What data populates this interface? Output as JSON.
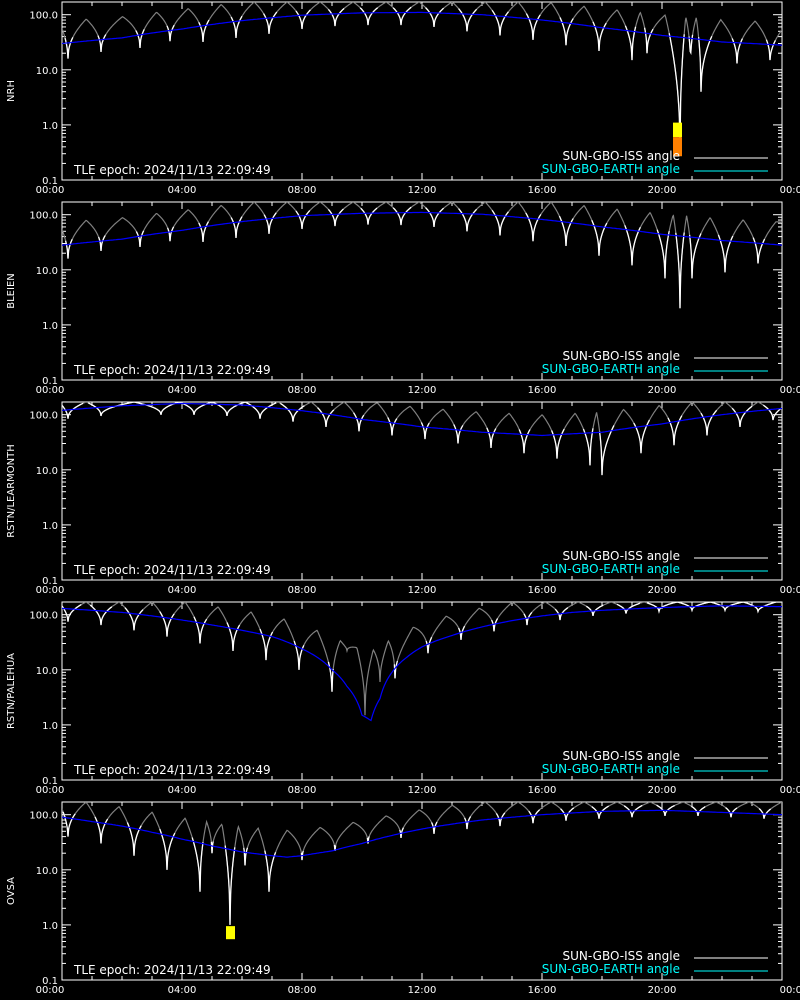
{
  "legend": {
    "iss_label": "SUN-GBO-ISS angle",
    "earth_label": "SUN-GBO-EARTH angle"
  },
  "tle_text": "TLE epoch: 2024/11/13 22:09:49",
  "colors": {
    "background": "#000000",
    "axis": "#ffffff",
    "iss_line": "#ffffff",
    "iss_shaded": "#808080",
    "earth_curve": "#0000ff",
    "earth_legend": "#00ffff",
    "marker_yellow": "#ffff00",
    "marker_orange": "#ff8000"
  },
  "chart_data": [
    {
      "type": "line",
      "ylabel": "NRH",
      "x_ticks": [
        "00:00",
        "04:00",
        "08:00",
        "12:00",
        "16:00",
        "20:00",
        "00:00"
      ],
      "y_ticks": [
        "0.1",
        "1.0",
        "10.0",
        "100.0"
      ],
      "xlim_hours": [
        0,
        24
      ],
      "ylim": [
        0.1,
        170
      ],
      "yscale": "log",
      "earth_curve": {
        "hours": [
          0,
          2,
          4,
          6,
          8,
          10,
          12,
          14,
          16,
          18,
          20,
          22,
          24
        ],
        "values": [
          30,
          38,
          55,
          78,
          98,
          108,
          110,
          100,
          80,
          58,
          42,
          32,
          28
        ]
      },
      "iss_dips": [
        {
          "hour": 0.2,
          "value": 16
        },
        {
          "hour": 1.3,
          "value": 21
        },
        {
          "hour": 2.6,
          "value": 25
        },
        {
          "hour": 3.6,
          "value": 33
        },
        {
          "hour": 4.7,
          "value": 32
        },
        {
          "hour": 5.8,
          "value": 38
        },
        {
          "hour": 6.9,
          "value": 45
        },
        {
          "hour": 8.0,
          "value": 55
        },
        {
          "hour": 9.1,
          "value": 62
        },
        {
          "hour": 10.2,
          "value": 65
        },
        {
          "hour": 11.3,
          "value": 65
        },
        {
          "hour": 12.4,
          "value": 60
        },
        {
          "hour": 13.5,
          "value": 50
        },
        {
          "hour": 14.6,
          "value": 42
        },
        {
          "hour": 15.7,
          "value": 35
        },
        {
          "hour": 16.8,
          "value": 28
        },
        {
          "hour": 17.9,
          "value": 22
        },
        {
          "hour": 19.0,
          "value": 15
        },
        {
          "hour": 19.5,
          "value": 20
        },
        {
          "hour": 20.6,
          "value": 0.35
        },
        {
          "hour": 20.95,
          "value": 12
        },
        {
          "hour": 21.3,
          "value": 4
        },
        {
          "hour": 22.5,
          "value": 13
        },
        {
          "hour": 23.6,
          "value": 15
        }
      ],
      "iss_peak": 170,
      "markers": [
        {
          "hour": 20.5,
          "ymin": 0.6,
          "ymax": 1.1,
          "color": "#ffff00"
        },
        {
          "hour": 20.5,
          "ymin": 0.27,
          "ymax": 0.6,
          "color": "#ff8000"
        }
      ]
    },
    {
      "type": "line",
      "ylabel": "BLEIEN",
      "x_ticks": [
        "00:00",
        "04:00",
        "08:00",
        "12:00",
        "16:00",
        "20:00",
        "00:00"
      ],
      "y_ticks": [
        "0.1",
        "1.0",
        "10.0",
        "100.0"
      ],
      "xlim_hours": [
        0,
        24
      ],
      "ylim": [
        0.1,
        170
      ],
      "yscale": "log",
      "earth_curve": {
        "hours": [
          0,
          2,
          4,
          6,
          8,
          10,
          12,
          14,
          16,
          18,
          20,
          22,
          24
        ],
        "values": [
          28,
          36,
          52,
          75,
          96,
          106,
          110,
          102,
          82,
          60,
          44,
          34,
          28
        ]
      },
      "iss_dips": [
        {
          "hour": 0.2,
          "value": 16
        },
        {
          "hour": 1.3,
          "value": 22
        },
        {
          "hour": 2.6,
          "value": 26
        },
        {
          "hour": 3.6,
          "value": 33
        },
        {
          "hour": 4.7,
          "value": 32
        },
        {
          "hour": 5.8,
          "value": 38
        },
        {
          "hour": 6.9,
          "value": 45
        },
        {
          "hour": 8.0,
          "value": 55
        },
        {
          "hour": 9.1,
          "value": 62
        },
        {
          "hour": 10.2,
          "value": 66
        },
        {
          "hour": 11.3,
          "value": 65
        },
        {
          "hour": 12.4,
          "value": 60
        },
        {
          "hour": 13.5,
          "value": 50
        },
        {
          "hour": 14.6,
          "value": 42
        },
        {
          "hour": 15.7,
          "value": 33
        },
        {
          "hour": 16.8,
          "value": 27
        },
        {
          "hour": 17.9,
          "value": 18
        },
        {
          "hour": 19.0,
          "value": 12
        },
        {
          "hour": 20.1,
          "value": 7
        },
        {
          "hour": 20.6,
          "value": 2
        },
        {
          "hour": 21.0,
          "value": 7
        },
        {
          "hour": 22.1,
          "value": 9
        },
        {
          "hour": 23.2,
          "value": 13
        }
      ],
      "iss_peak": 170,
      "markers": []
    },
    {
      "type": "line",
      "ylabel": "RSTN/LEARMONTH",
      "x_ticks": [
        "00:00",
        "04:00",
        "08:00",
        "12:00",
        "16:00",
        "20:00",
        "00:00"
      ],
      "y_ticks": [
        "0.1",
        "1.0",
        "10.0",
        "100.0"
      ],
      "xlim_hours": [
        0,
        24
      ],
      "ylim": [
        0.1,
        170
      ],
      "yscale": "log",
      "earth_curve": {
        "hours": [
          0,
          2,
          4,
          6,
          8,
          10,
          12,
          14,
          16,
          18,
          20,
          22,
          24
        ],
        "values": [
          120,
          145,
          160,
          150,
          118,
          82,
          60,
          48,
          42,
          48,
          68,
          100,
          130
        ]
      },
      "iss_dips": [
        {
          "hour": 0.2,
          "value": 85
        },
        {
          "hour": 1.3,
          "value": 95
        },
        {
          "hour": 3.3,
          "value": 100
        },
        {
          "hour": 4.4,
          "value": 100
        },
        {
          "hour": 5.5,
          "value": 95
        },
        {
          "hour": 6.6,
          "value": 85
        },
        {
          "hour": 7.7,
          "value": 75
        },
        {
          "hour": 8.8,
          "value": 60
        },
        {
          "hour": 9.9,
          "value": 50
        },
        {
          "hour": 11.0,
          "value": 42
        },
        {
          "hour": 12.1,
          "value": 36
        },
        {
          "hour": 13.2,
          "value": 30
        },
        {
          "hour": 14.3,
          "value": 25
        },
        {
          "hour": 15.4,
          "value": 20
        },
        {
          "hour": 16.5,
          "value": 16
        },
        {
          "hour": 17.6,
          "value": 12
        },
        {
          "hour": 18.0,
          "value": 8
        },
        {
          "hour": 19.3,
          "value": 20
        },
        {
          "hour": 20.4,
          "value": 28
        },
        {
          "hour": 21.5,
          "value": 42
        },
        {
          "hour": 22.6,
          "value": 60
        },
        {
          "hour": 23.7,
          "value": 80
        }
      ],
      "iss_peak": 170,
      "markers": []
    },
    {
      "type": "line",
      "ylabel": "RSTN/PALEHUA",
      "x_ticks": [
        "00:00",
        "04:00",
        "08:00",
        "12:00",
        "16:00",
        "20:00",
        "00:00"
      ],
      "y_ticks": [
        "0.1",
        "1.0",
        "10.0",
        "100.0"
      ],
      "xlim_hours": [
        0,
        24
      ],
      "ylim": [
        0.1,
        170
      ],
      "yscale": "log",
      "earth_curve": {
        "hours": [
          0,
          2,
          3,
          4,
          5,
          6,
          7,
          7.5,
          8,
          8.5,
          9,
          9.5,
          10,
          10.3,
          10.6,
          11,
          11.5,
          12,
          13,
          14,
          15,
          16,
          17,
          18,
          20,
          22,
          24
        ],
        "values": [
          130,
          110,
          95,
          80,
          65,
          52,
          40,
          32,
          24,
          17,
          10,
          5,
          1.5,
          1.2,
          3,
          9,
          17,
          26,
          42,
          60,
          78,
          95,
          110,
          120,
          135,
          145,
          140
        ]
      },
      "iss_dips": [
        {
          "hour": 0.2,
          "value": 75
        },
        {
          "hour": 1.3,
          "value": 65
        },
        {
          "hour": 2.4,
          "value": 52
        },
        {
          "hour": 3.5,
          "value": 40
        },
        {
          "hour": 4.6,
          "value": 30
        },
        {
          "hour": 5.7,
          "value": 22
        },
        {
          "hour": 6.8,
          "value": 15
        },
        {
          "hour": 7.9,
          "value": 10
        },
        {
          "hour": 9.0,
          "value": 4
        },
        {
          "hour": 9.5,
          "value": 22
        },
        {
          "hour": 10.1,
          "value": 1.5
        },
        {
          "hour": 10.6,
          "value": 6
        },
        {
          "hour": 11.1,
          "value": 7
        },
        {
          "hour": 12.2,
          "value": 20
        },
        {
          "hour": 13.3,
          "value": 35
        },
        {
          "hour": 14.4,
          "value": 50
        },
        {
          "hour": 15.5,
          "value": 65
        },
        {
          "hour": 16.6,
          "value": 80
        },
        {
          "hour": 17.7,
          "value": 95
        },
        {
          "hour": 18.8,
          "value": 105
        },
        {
          "hour": 19.9,
          "value": 115
        },
        {
          "hour": 21.0,
          "value": 120
        },
        {
          "hour": 22.1,
          "value": 120
        },
        {
          "hour": 23.2,
          "value": 115
        }
      ],
      "iss_peak": 170,
      "markers": []
    },
    {
      "type": "line",
      "ylabel": "OVSA",
      "x_ticks": [
        "00:00",
        "04:00",
        "08:00",
        "12:00",
        "16:00",
        "20:00",
        "00:00"
      ],
      "y_ticks": [
        "0.1",
        "1.0",
        "10.0",
        "100.0"
      ],
      "xlim_hours": [
        0,
        24
      ],
      "ylim": [
        0.1,
        170
      ],
      "yscale": "log",
      "earth_curve": {
        "hours": [
          0,
          1,
          2,
          3,
          4,
          5,
          6,
          7,
          7.5,
          8,
          9,
          10,
          11,
          12,
          14,
          16,
          18,
          20,
          22,
          24
        ],
        "values": [
          90,
          75,
          62,
          48,
          36,
          27,
          21,
          18,
          17,
          18,
          22,
          30,
          42,
          55,
          80,
          100,
          115,
          120,
          110,
          100
        ]
      },
      "iss_dips": [
        {
          "hour": 0.2,
          "value": 40
        },
        {
          "hour": 1.3,
          "value": 30
        },
        {
          "hour": 2.4,
          "value": 18
        },
        {
          "hour": 3.5,
          "value": 10
        },
        {
          "hour": 4.6,
          "value": 4
        },
        {
          "hour": 5.0,
          "value": 20
        },
        {
          "hour": 5.6,
          "value": 1.0
        },
        {
          "hour": 6.1,
          "value": 12
        },
        {
          "hour": 6.9,
          "value": 4
        },
        {
          "hour": 8.0,
          "value": 15
        },
        {
          "hour": 9.1,
          "value": 22
        },
        {
          "hour": 10.2,
          "value": 30
        },
        {
          "hour": 11.3,
          "value": 38
        },
        {
          "hour": 12.4,
          "value": 45
        },
        {
          "hour": 13.5,
          "value": 55
        },
        {
          "hour": 14.6,
          "value": 62
        },
        {
          "hour": 15.7,
          "value": 70
        },
        {
          "hour": 16.8,
          "value": 78
        },
        {
          "hour": 17.9,
          "value": 85
        },
        {
          "hour": 19.0,
          "value": 90
        },
        {
          "hour": 20.1,
          "value": 95
        },
        {
          "hour": 21.2,
          "value": 95
        },
        {
          "hour": 22.3,
          "value": 90
        },
        {
          "hour": 23.4,
          "value": 85
        }
      ],
      "iss_peak": 170,
      "markers": [
        {
          "hour": 5.6,
          "ymin": 0.55,
          "ymax": 0.95,
          "color": "#ffff00"
        }
      ]
    }
  ]
}
